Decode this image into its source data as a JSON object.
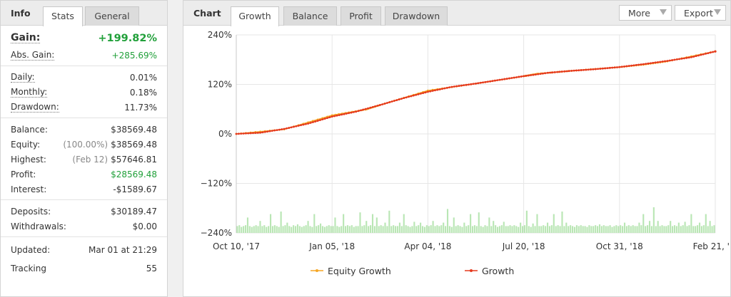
{
  "left": {
    "title": "Info",
    "tabs": [
      {
        "label": "Stats",
        "active": true
      },
      {
        "label": "General",
        "active": false
      }
    ],
    "gain": {
      "label": "Gain:",
      "value": "+199.82%"
    },
    "abs_gain": {
      "label": "Abs. Gain:",
      "value": "+285.69%"
    },
    "daily": {
      "label": "Daily:",
      "value": "0.01%"
    },
    "monthly": {
      "label": "Monthly:",
      "value": "0.18%"
    },
    "drawdown": {
      "label": "Drawdown:",
      "value": "11.73%"
    },
    "balance": {
      "label": "Balance:",
      "value": "$38569.48"
    },
    "equity": {
      "label": "Equity:",
      "prefix": "(100.00%)",
      "value": "$38569.48"
    },
    "highest": {
      "label": "Highest:",
      "prefix": "(Feb 12)",
      "value": "$57646.81"
    },
    "profit": {
      "label": "Profit:",
      "value": "$28569.48"
    },
    "interest": {
      "label": "Interest:",
      "value": "-$1589.67"
    },
    "deposits": {
      "label": "Deposits:",
      "value": "$30189.47"
    },
    "withdrawals": {
      "label": "Withdrawals:",
      "value": "$0.00"
    },
    "updated": {
      "label": "Updated:",
      "value": "Mar 01 at 21:29"
    },
    "tracking": {
      "label": "Tracking",
      "value": "55"
    },
    "green_color": "#21a03a"
  },
  "right": {
    "title": "Chart",
    "tabs": [
      {
        "label": "Growth",
        "active": true
      },
      {
        "label": "Balance",
        "active": false
      },
      {
        "label": "Profit",
        "active": false
      },
      {
        "label": "Drawdown",
        "active": false
      }
    ],
    "more_label": "More",
    "export_label": "Export"
  },
  "chart_data": {
    "type": "line",
    "y_ticks": [
      "240%",
      "120%",
      "0%",
      "−120%",
      "−240%"
    ],
    "y_tick_values": [
      240,
      120,
      0,
      -120,
      -240
    ],
    "ylim": [
      -240,
      240
    ],
    "x_ticks": [
      "Oct 10, '17",
      "Jan 05, '18",
      "Apr 04, '18",
      "Jul 20, '18",
      "Oct 31, '18",
      "Feb 21, '..."
    ],
    "x_tick_positions": [
      0,
      0.2,
      0.4,
      0.6,
      0.8,
      1.0
    ],
    "grid": true,
    "legend_placement": "bottom",
    "series": [
      {
        "name": "Equity Growth",
        "color": "#f5a623",
        "x": [
          0,
          0.1,
          0.2,
          0.27,
          0.3,
          0.4,
          0.5,
          0.6,
          0.63,
          0.7,
          0.8,
          0.85,
          0.9,
          1.0
        ],
        "values": [
          0,
          11,
          45,
          59,
          70,
          105,
          122,
          140,
          146,
          153,
          162,
          168,
          176,
          200
        ]
      },
      {
        "name": "Growth",
        "color": "#e53a1e",
        "x": [
          0,
          0.05,
          0.1,
          0.15,
          0.2,
          0.25,
          0.3,
          0.35,
          0.4,
          0.45,
          0.5,
          0.55,
          0.6,
          0.65,
          0.7,
          0.75,
          0.8,
          0.85,
          0.9,
          0.95,
          1.0
        ],
        "values": [
          0,
          3,
          12,
          25,
          42,
          54,
          70,
          87,
          102,
          114,
          122,
          131,
          140,
          148,
          153,
          157,
          162,
          169,
          177,
          186,
          200
        ]
      }
    ],
    "bar_color": "#b9e6b4",
    "bar_values": [
      8,
      9,
      7,
      8,
      9,
      18,
      8,
      7,
      8,
      9,
      8,
      14,
      8,
      9,
      7,
      8,
      22,
      8,
      9,
      8,
      7,
      25,
      8,
      9,
      12,
      8,
      7,
      9,
      8,
      10,
      8,
      7,
      8,
      9,
      14,
      8,
      7,
      22,
      8,
      9,
      11,
      8,
      7,
      8,
      9,
      8,
      8,
      18,
      8,
      7,
      8,
      22,
      8,
      9,
      8,
      9,
      7,
      8,
      8,
      24,
      8,
      9,
      14,
      8,
      9,
      22,
      8,
      18,
      8,
      9,
      8,
      12,
      8,
      26,
      8,
      9,
      8,
      8,
      12,
      8,
      22,
      9,
      8,
      7,
      8,
      13,
      8,
      9,
      12,
      8,
      7,
      9,
      8,
      9,
      14,
      8,
      9,
      8,
      9,
      12,
      8,
      28,
      8,
      7,
      18,
      8,
      9,
      8,
      7,
      12,
      8,
      9,
      22,
      8,
      9,
      8,
      24,
      8,
      7,
      9,
      8,
      18,
      8,
      14,
      9,
      7,
      8,
      9,
      13,
      8,
      8,
      9,
      8,
      9,
      8,
      7,
      12,
      8,
      9,
      26,
      8,
      7,
      11,
      8,
      22,
      8,
      8,
      9,
      8,
      12,
      8,
      9,
      22,
      8,
      9,
      8,
      25,
      8,
      12,
      8,
      9,
      8,
      7,
      9,
      8,
      9,
      8,
      8,
      7,
      9,
      8,
      8,
      9,
      8,
      10,
      8,
      9,
      8,
      8,
      9,
      7,
      8,
      9,
      8,
      9,
      8,
      12,
      8,
      9,
      8,
      9,
      8,
      8,
      12,
      9,
      22,
      8,
      9,
      14,
      8,
      30,
      8,
      14,
      8,
      9,
      8,
      8,
      9,
      14,
      8,
      9,
      8,
      12,
      8,
      9,
      13,
      8,
      9,
      22,
      8,
      8,
      9,
      12,
      8,
      9,
      22,
      8,
      14,
      8,
      9
    ]
  }
}
